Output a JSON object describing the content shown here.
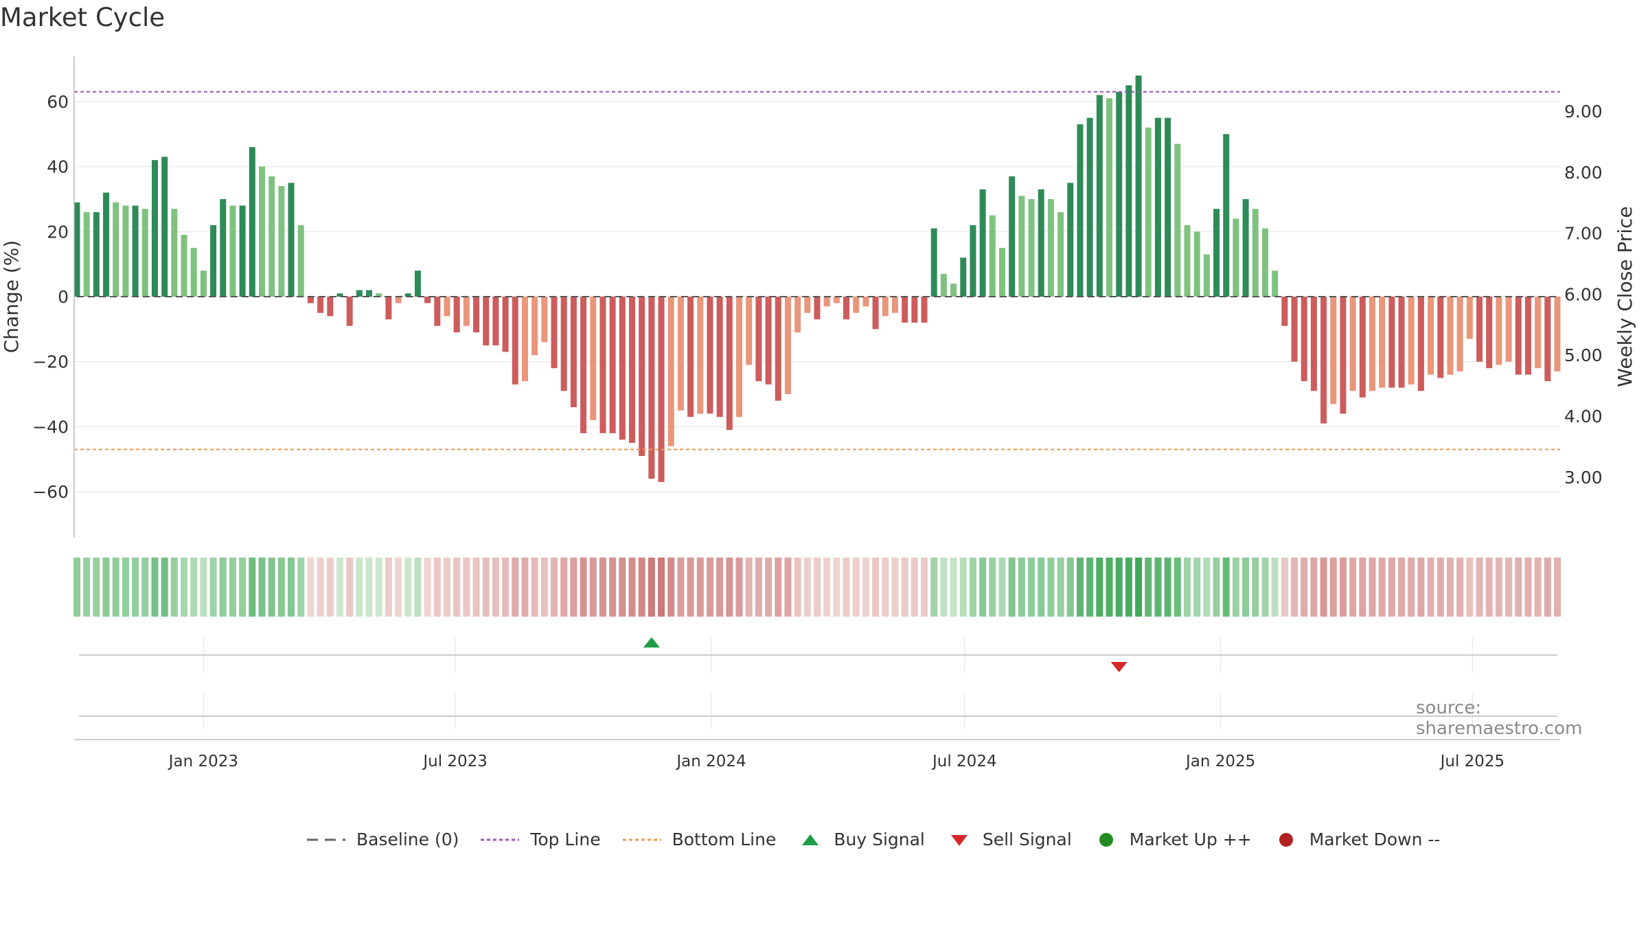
{
  "title": "Market Cycle",
  "source": "source: sharemaestro.com",
  "colors": {
    "dark_green": "#2e8b57",
    "light_green": "#7fc27f",
    "dark_red": "#cd5c5c",
    "light_red": "#e9967a",
    "top_line": "#9b59b6",
    "bottom_line": "#e59d55",
    "buy": "#1f9e47",
    "sell": "#d62728",
    "market_up": "#228b22",
    "market_down": "#b22222"
  },
  "legend": [
    {
      "label": "Baseline (0)",
      "icon": "dash-line-icon",
      "color": "#666666"
    },
    {
      "label": "Top Line",
      "icon": "dotted-line-icon",
      "color": "#9b59b6"
    },
    {
      "label": "Bottom Line",
      "icon": "dotted-line-icon",
      "color": "#e59d55"
    },
    {
      "label": "Buy Signal",
      "icon": "triangle-up-icon",
      "color": "#1f9e47"
    },
    {
      "label": "Sell Signal",
      "icon": "triangle-down-icon",
      "color": "#d62728"
    },
    {
      "label": "Market Up ++",
      "icon": "circle-icon",
      "color": "#228b22"
    },
    {
      "label": "Market Down --",
      "icon": "circle-icon",
      "color": "#b22222"
    }
  ],
  "chart_data": {
    "type": "bar",
    "ylabel": "Change (%)",
    "y2label": "Weekly Close Price",
    "ylim": [
      -75,
      75
    ],
    "y2lim": [
      2.0,
      10.0
    ],
    "yticks": [
      60,
      40,
      20,
      0,
      -20,
      -40,
      -60
    ],
    "ytick_labels": [
      "60",
      "40",
      "20",
      "0",
      "−20",
      "−40",
      "−60"
    ],
    "y2ticks": [
      9.0,
      8.0,
      7.0,
      6.0,
      5.0,
      4.0,
      3.0
    ],
    "y2tick_labels": [
      "9.00",
      "8.00",
      "7.00",
      "6.00",
      "5.00",
      "4.00",
      "3.00"
    ],
    "top_line": 63,
    "bottom_line": -47,
    "grid": true,
    "start_date": "2022-10-02",
    "x_ticks": [
      "2023-01-01",
      "2023-07-01",
      "2024-01-01",
      "2024-07-01",
      "2025-01-01",
      "2025-07-01"
    ],
    "x_tick_labels": [
      "Jan 2023",
      "Jul 2023",
      "Jan 2024",
      "Jul 2024",
      "Jan 2025",
      "Jul 2025"
    ],
    "values": [
      29,
      26,
      26,
      32,
      29,
      28,
      28,
      27,
      42,
      43,
      27,
      19,
      15,
      8,
      22,
      30,
      28,
      28,
      46,
      40,
      37,
      34,
      35,
      22,
      -2,
      -5,
      -6,
      1,
      -9,
      2,
      2,
      1,
      -7,
      -2,
      1,
      8,
      -2,
      -9,
      -6,
      -11,
      -9,
      -11,
      -15,
      -15,
      -17,
      -27,
      -26,
      -18,
      -14,
      -22,
      -29,
      -34,
      -42,
      -38,
      -42,
      -42,
      -44,
      -45,
      -49,
      -56,
      -57,
      -46,
      -35,
      -37,
      -36,
      -36,
      -37,
      -41,
      -37,
      -21,
      -26,
      -27,
      -32,
      -30,
      -11,
      -5,
      -7,
      -3,
      -2,
      -7,
      -5,
      -3,
      -10,
      -6,
      -5,
      -8,
      -8,
      -8,
      21,
      7,
      4,
      12,
      22,
      33,
      25,
      15,
      37,
      31,
      30,
      33,
      30,
      26,
      35,
      53,
      55,
      62,
      61,
      63,
      65,
      68,
      52,
      55,
      55,
      47,
      22,
      20,
      13,
      27,
      50,
      24,
      30,
      27,
      21,
      8,
      -9,
      -20,
      -26,
      -29,
      -39,
      -33,
      -36,
      -29,
      -31,
      -29,
      -28,
      -28,
      -28,
      -27,
      -29,
      -24,
      -25,
      -24,
      -23,
      -13,
      -20,
      -22,
      -21,
      -20,
      -24,
      -24,
      -22,
      -26,
      -23
    ],
    "buy_signals": [
      "2023-11-19"
    ],
    "sell_signals": [
      "2024-10-20"
    ]
  }
}
